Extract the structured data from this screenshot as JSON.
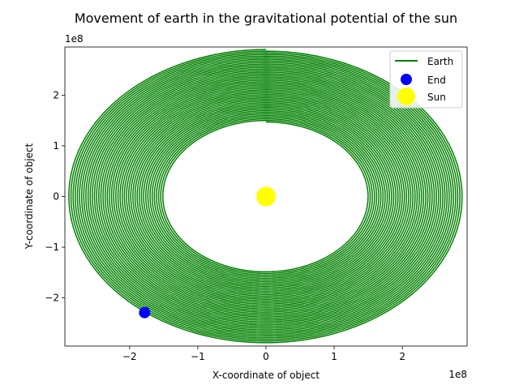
{
  "chart_data": {
    "type": "line",
    "title": "Movement of earth in the gravitational potential of the sun",
    "xlabel": "X-coordinate of object",
    "ylabel": "Y-coordinate of object",
    "x_offset_label": "1e8",
    "y_offset_label": "1e8",
    "xlim": [
      -2.95,
      2.95
    ],
    "ylim": [
      -2.95,
      2.95
    ],
    "xticks": [
      -2,
      -1,
      0,
      1,
      2
    ],
    "xtick_labels": [
      "−2",
      "−1",
      "0",
      "1",
      "2"
    ],
    "yticks": [
      -2,
      -1,
      0,
      1,
      2
    ],
    "ytick_labels": [
      "−2",
      "−1",
      "0",
      "1",
      "2"
    ],
    "grid": false,
    "legend_position": "top-right",
    "series": [
      {
        "name": "Earth",
        "kind": "line",
        "color": "#008000",
        "spiral": {
          "a_start": 1.49,
          "a_end": 2.9,
          "b_start": 1.47,
          "b_end": 2.9,
          "turns": 45
        }
      },
      {
        "name": "End",
        "kind": "point",
        "color": "#0000ff",
        "x": -1.78,
        "y": -2.29
      },
      {
        "name": "Sun",
        "kind": "point",
        "color": "#ffff00",
        "x": 0,
        "y": 0
      }
    ]
  }
}
